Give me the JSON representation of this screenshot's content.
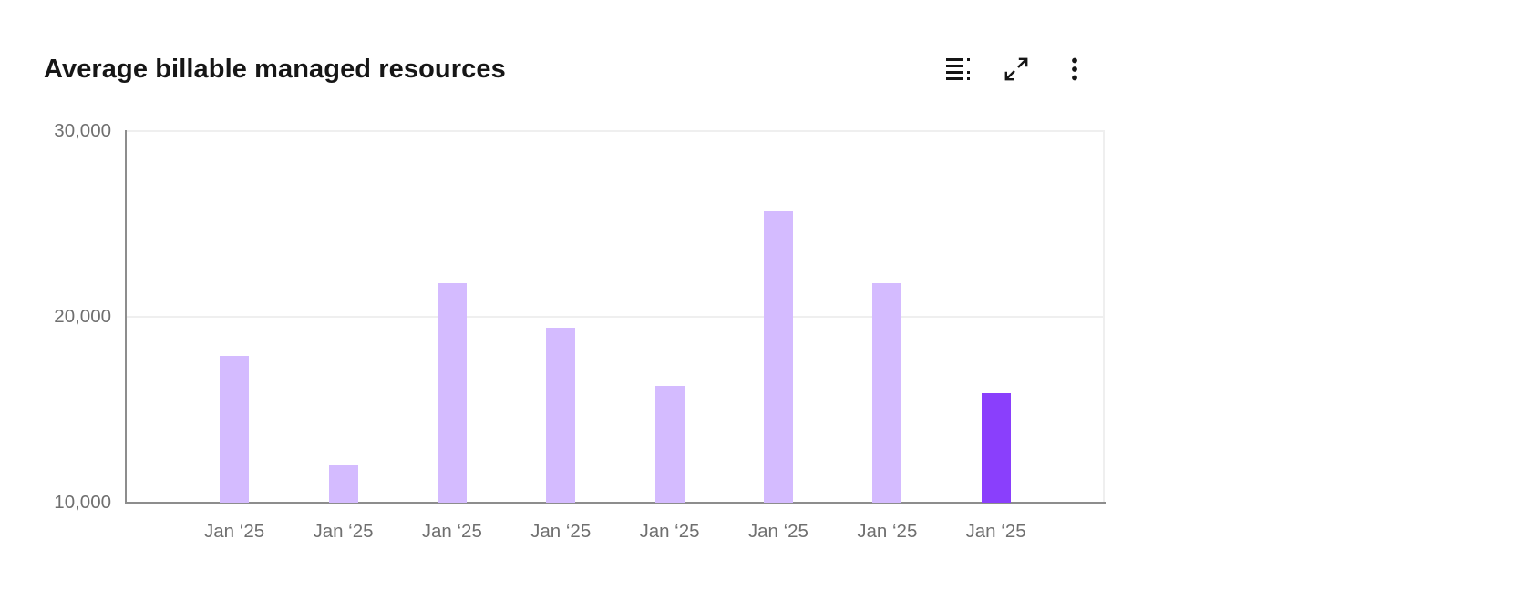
{
  "header": {
    "title": "Average billable managed resources"
  },
  "toolbar": {
    "icons": [
      "data-table",
      "expand",
      "overflow-menu"
    ]
  },
  "colors": {
    "bar_default": "#d4bbff",
    "bar_highlight": "#8a3ffc",
    "axis_line": "#8d8d8d",
    "gridline": "#efefef",
    "tick_text": "#6f6f6f",
    "title_text": "#161616",
    "background": "#ffffff"
  },
  "chart_data": {
    "type": "bar",
    "title": "Average billable managed resources",
    "categories": [
      "Jan ‘25",
      "Jan ‘25",
      "Jan ‘25",
      "Jan ‘25",
      "Jan ‘25",
      "Jan ‘25",
      "Jan ‘25",
      "Jan ‘25"
    ],
    "values": [
      17900,
      12000,
      21800,
      19400,
      16300,
      25700,
      21800,
      15900
    ],
    "highlight_index": 7,
    "bar_color": "#d4bbff",
    "highlight_color": "#8a3ffc",
    "xlabel": "",
    "ylabel": "",
    "ylim": [
      10000,
      30000
    ],
    "ytick_labels": [
      "10,000",
      "20,000",
      "30,000"
    ],
    "grid": "horizontal",
    "legend": "none"
  }
}
